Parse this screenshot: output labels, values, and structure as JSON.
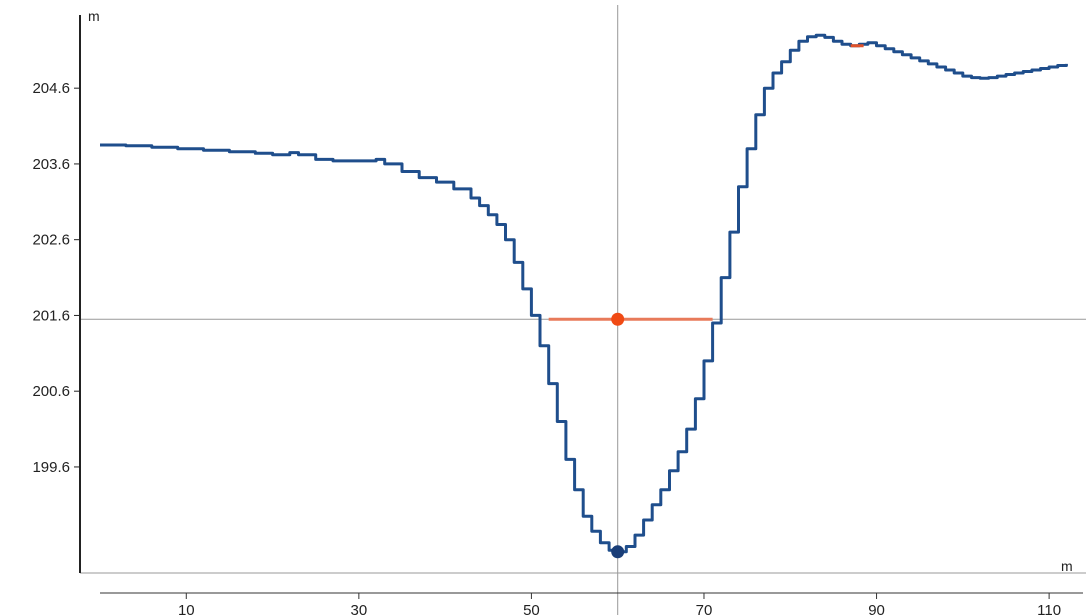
{
  "chart_data": {
    "type": "line",
    "title": "",
    "xlabel": "m",
    "ylabel": "m",
    "xlim": [
      0,
      113
    ],
    "ylim": [
      198.2,
      205.5
    ],
    "x_ticks": [
      10,
      30,
      50,
      70,
      90,
      110
    ],
    "y_ticks": [
      199.6,
      200.6,
      201.6,
      202.6,
      203.6,
      204.6
    ],
    "grid": false,
    "series": [
      {
        "color": "#1f4e8c",
        "points": [
          [
            0,
            203.85
          ],
          [
            3,
            203.84
          ],
          [
            6,
            203.82
          ],
          [
            9,
            203.8
          ],
          [
            12,
            203.78
          ],
          [
            15,
            203.76
          ],
          [
            18,
            203.74
          ],
          [
            20,
            203.72
          ],
          [
            22,
            203.75
          ],
          [
            23,
            203.72
          ],
          [
            25,
            203.66
          ],
          [
            27,
            203.64
          ],
          [
            30,
            203.64
          ],
          [
            32,
            203.66
          ],
          [
            33,
            203.6
          ],
          [
            35,
            203.5
          ],
          [
            37,
            203.42
          ],
          [
            39,
            203.36
          ],
          [
            41,
            203.27
          ],
          [
            43,
            203.15
          ],
          [
            44,
            203.05
          ],
          [
            45,
            202.93
          ],
          [
            46,
            202.8
          ],
          [
            47,
            202.6
          ],
          [
            48,
            202.3
          ],
          [
            49,
            201.95
          ],
          [
            50,
            201.6
          ],
          [
            51,
            201.2
          ],
          [
            52,
            200.7
          ],
          [
            53,
            200.2
          ],
          [
            54,
            199.7
          ],
          [
            55,
            199.3
          ],
          [
            56,
            198.95
          ],
          [
            57,
            198.75
          ],
          [
            58,
            198.6
          ],
          [
            59,
            198.5
          ],
          [
            60,
            198.48
          ],
          [
            61,
            198.55
          ],
          [
            62,
            198.7
          ],
          [
            63,
            198.9
          ],
          [
            64,
            199.1
          ],
          [
            65,
            199.3
          ],
          [
            66,
            199.55
          ],
          [
            67,
            199.8
          ],
          [
            68,
            200.1
          ],
          [
            69,
            200.5
          ],
          [
            70,
            201.0
          ],
          [
            71,
            201.5
          ],
          [
            72,
            202.1
          ],
          [
            73,
            202.7
          ],
          [
            74,
            203.3
          ],
          [
            75,
            203.8
          ],
          [
            76,
            204.25
          ],
          [
            77,
            204.6
          ],
          [
            78,
            204.8
          ],
          [
            79,
            204.95
          ],
          [
            80,
            205.1
          ],
          [
            81,
            205.22
          ],
          [
            82,
            205.28
          ],
          [
            83,
            205.3
          ],
          [
            84,
            205.27
          ],
          [
            85,
            205.22
          ],
          [
            86,
            205.18
          ],
          [
            87,
            205.16
          ],
          [
            88,
            205.18
          ],
          [
            89,
            205.2
          ],
          [
            90,
            205.16
          ],
          [
            91,
            205.12
          ],
          [
            92,
            205.08
          ],
          [
            93,
            205.04
          ],
          [
            94,
            205.0
          ],
          [
            95,
            204.96
          ],
          [
            96,
            204.92
          ],
          [
            97,
            204.88
          ],
          [
            98,
            204.84
          ],
          [
            99,
            204.8
          ],
          [
            100,
            204.76
          ],
          [
            101,
            204.74
          ],
          [
            102,
            204.73
          ],
          [
            103,
            204.74
          ],
          [
            104,
            204.76
          ],
          [
            105,
            204.78
          ],
          [
            106,
            204.8
          ],
          [
            107,
            204.82
          ],
          [
            108,
            204.84
          ],
          [
            109,
            204.86
          ],
          [
            110,
            204.88
          ],
          [
            111,
            204.9
          ],
          [
            112,
            204.92
          ]
        ]
      }
    ],
    "crosshair": {
      "x": 60,
      "y": 201.55
    },
    "annotations": [
      {
        "type": "segment",
        "color": "#e87a5a",
        "x1": 52,
        "x2": 71,
        "y": 201.55
      },
      {
        "type": "segment",
        "color": "#e0522a",
        "x1": 87,
        "x2": 88.5,
        "y": 205.16
      },
      {
        "type": "point",
        "color": "#f04a14",
        "x": 60,
        "y": 201.55
      },
      {
        "type": "point",
        "color": "#1a3e78",
        "x": 60,
        "y": 198.48
      }
    ]
  }
}
